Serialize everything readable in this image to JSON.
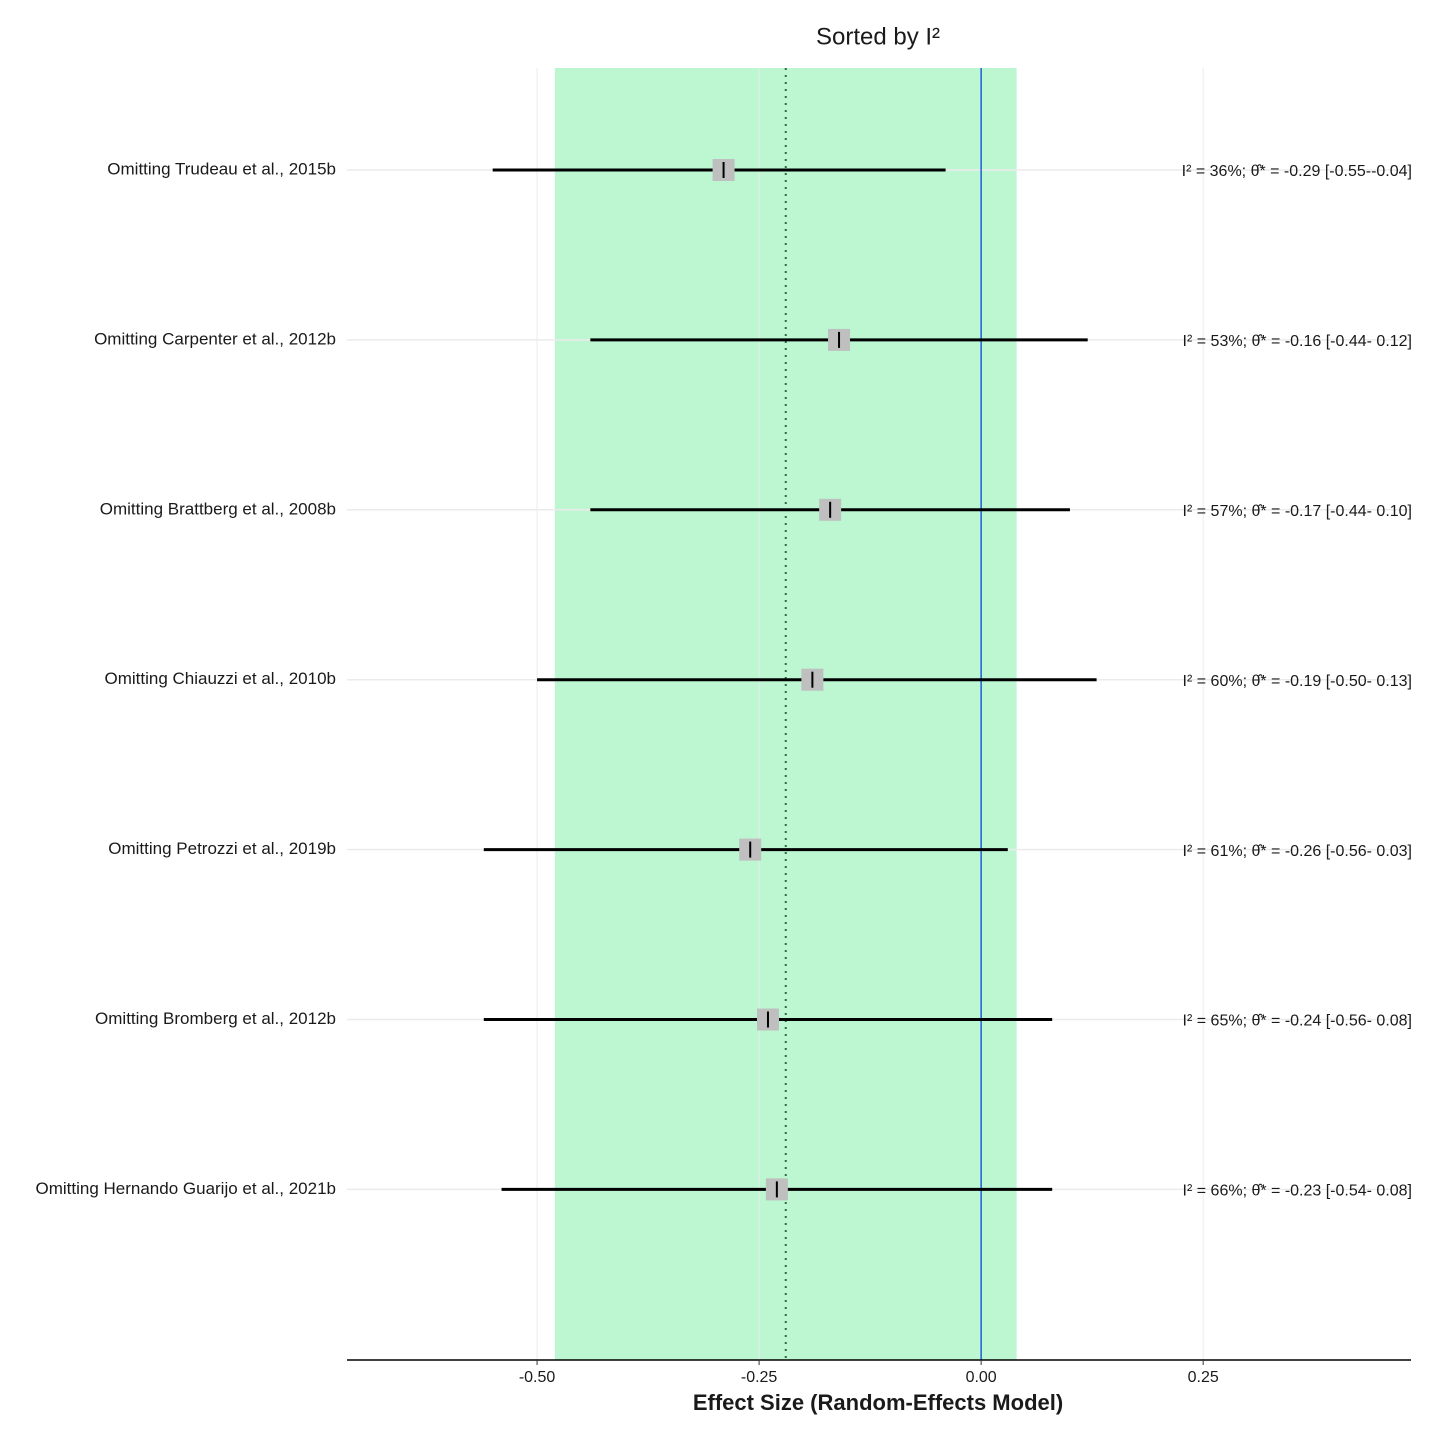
{
  "chart_data": {
    "type": "forest",
    "title": "Sorted by I²",
    "x_label": "Effect Size (Random-Effects Model)",
    "categories": [
      "Omitting Trudeau et al., 2015b",
      "Omitting Carpenter et al., 2012b",
      "Omitting Brattberg et al., 2008b",
      "Omitting Chiauzzi et al., 2010b",
      "Omitting Petrozzi et al., 2019b",
      "Omitting Bromberg et al., 2012b",
      "Omitting Hernando Guarijo et al., 2021b"
    ],
    "values": [
      -0.29,
      -0.16,
      -0.17,
      -0.19,
      -0.26,
      -0.24,
      -0.23
    ],
    "ci_lower": [
      -0.55,
      -0.44,
      -0.44,
      -0.5,
      -0.56,
      -0.56,
      -0.54
    ],
    "ci_upper": [
      -0.04,
      0.12,
      0.1,
      0.13,
      0.03,
      0.08,
      0.08
    ],
    "annotations": [
      "I² = 36%; θ̂* = -0.29 [-0.55--0.04]",
      "I² = 53%; θ̂* = -0.16 [-0.44- 0.12]",
      "I² = 57%; θ̂* = -0.17 [-0.44- 0.10]",
      "I² = 60%; θ̂* = -0.19 [-0.50- 0.13]",
      "I² = 61%; θ̂* = -0.26 [-0.56- 0.03]",
      "I² = 65%; θ̂* = -0.24 [-0.56- 0.08]",
      "I² = 66%; θ̂* = -0.23 [-0.54- 0.08]"
    ],
    "prediction_interval": [
      -0.48,
      0.04
    ],
    "pooled_estimate": -0.22,
    "reference_line": 0,
    "xlim": [
      -0.714,
      0.484
    ],
    "xticks": [
      {
        "value": -0.5,
        "label": "-0.50"
      },
      {
        "value": -0.25,
        "label": "-0.25"
      },
      {
        "value": 0,
        "label": "0.00"
      },
      {
        "value": 0.25,
        "label": "0.25"
      }
    ],
    "grid": true,
    "band_color": "#bdf7d2",
    "reference_color": "#1f5fd6",
    "point_color": "#bfbfbf",
    "line_color": "#000000"
  }
}
